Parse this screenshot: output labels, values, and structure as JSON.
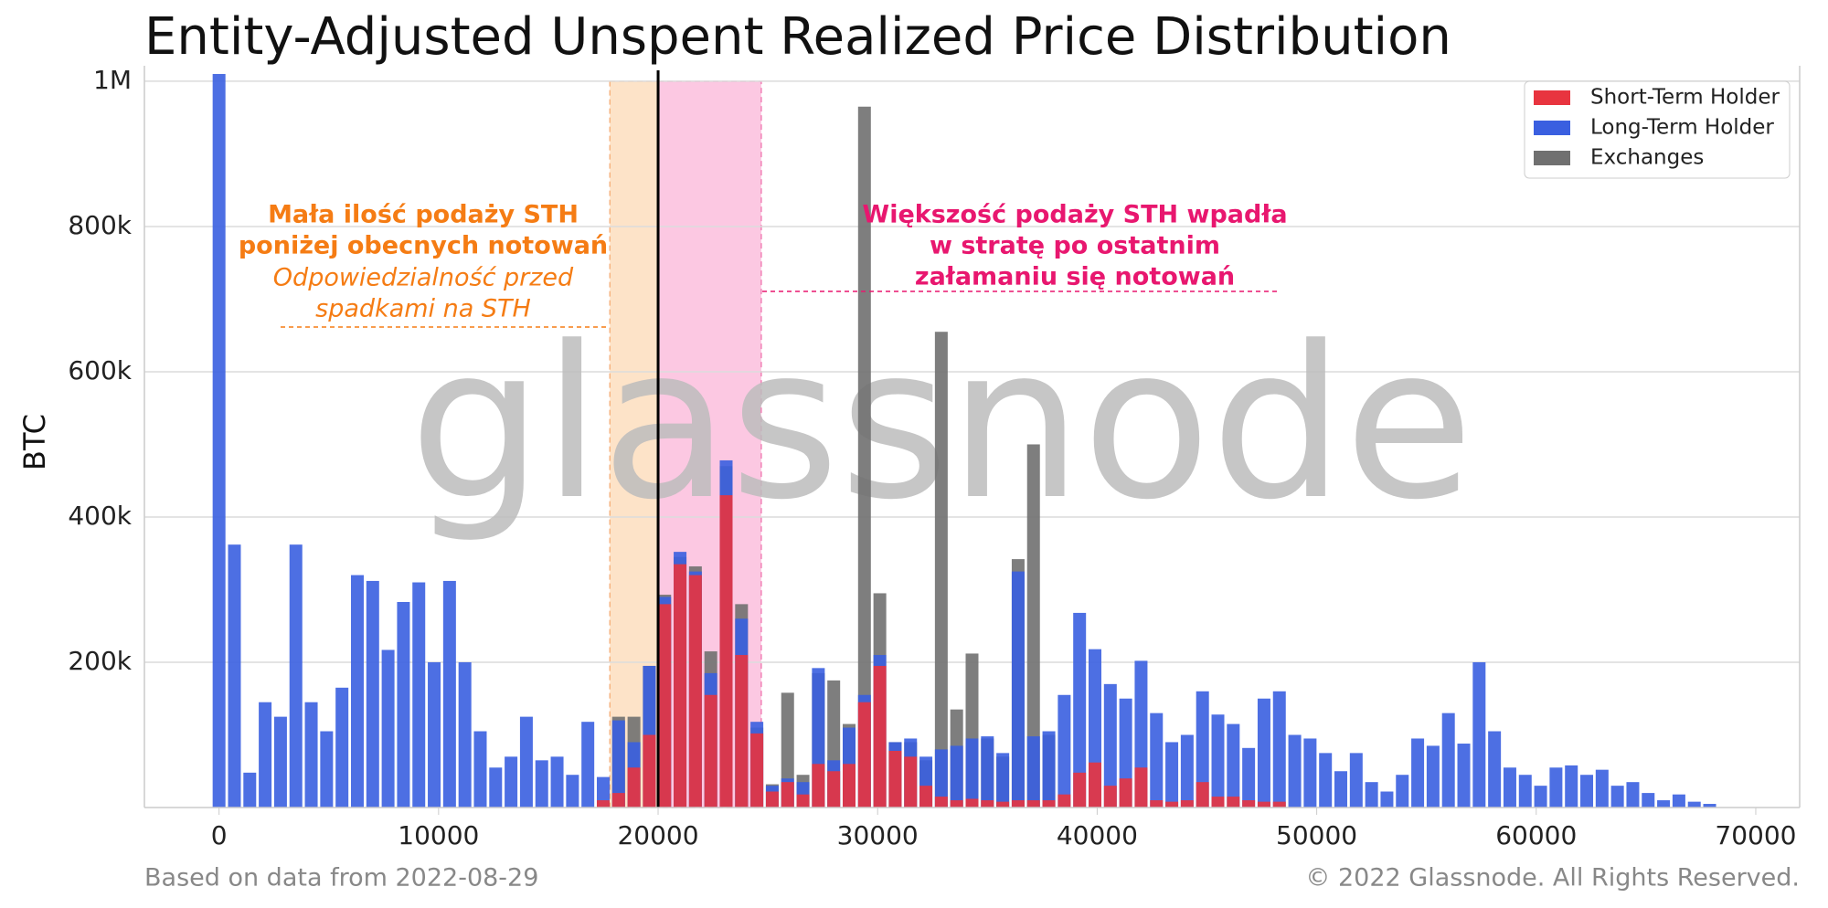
{
  "chart_data": {
    "type": "overlapping_bar",
    "title": "Entity-Adjusted Unspent Realized Price Distribution",
    "ylabel": "BTC",
    "watermark": "glassnode",
    "footer_left": "Based on data from 2022-08-29",
    "footer_right": "© 2022 Glassnode. All Rights Reserved.",
    "xlim": [
      -3400,
      72000
    ],
    "ylim": [
      0,
      1015000
    ],
    "xticks": [
      0,
      10000,
      20000,
      30000,
      40000,
      50000,
      60000,
      70000
    ],
    "yticks": [
      {
        "value": 200000,
        "label": "200k"
      },
      {
        "value": 400000,
        "label": "400k"
      },
      {
        "value": 600000,
        "label": "600k"
      },
      {
        "value": 800000,
        "label": "800k"
      },
      {
        "value": 1000000,
        "label": "1M"
      }
    ],
    "grid": true,
    "legend": "upper right",
    "x": [
      0,
      700,
      1400,
      2100,
      2800,
      3500,
      4200,
      4900,
      5600,
      6300,
      7000,
      7700,
      8400,
      9100,
      9800,
      10500,
      11200,
      11900,
      12600,
      13300,
      14000,
      14700,
      15400,
      16100,
      16800,
      17500,
      18200,
      18900,
      19600,
      20300,
      21000,
      21700,
      22400,
      23100,
      23800,
      24500,
      25200,
      25900,
      26600,
      27300,
      28000,
      28700,
      29400,
      30100,
      30800,
      31500,
      32200,
      32900,
      33600,
      34300,
      35000,
      35700,
      36400,
      37100,
      37800,
      38500,
      39200,
      39900,
      40600,
      41300,
      42000,
      42700,
      43400,
      44100,
      44800,
      45500,
      46200,
      46900,
      47600,
      48300,
      49000,
      49700,
      50400,
      51100,
      51800,
      52500,
      53200,
      53900,
      54600,
      55300,
      56000,
      56700,
      57400,
      58100,
      58800,
      59500,
      60200,
      60900,
      61600,
      62300,
      63000,
      63700,
      64400,
      65100,
      65800,
      66500,
      67200,
      67900
    ],
    "series": [
      {
        "name": "Exchanges",
        "color": "#707070",
        "values": [
          0,
          0,
          0,
          0,
          0,
          0,
          0,
          0,
          0,
          0,
          0,
          0,
          0,
          0,
          0,
          0,
          0,
          0,
          0,
          0,
          0,
          0,
          0,
          0,
          0,
          0,
          125000,
          125000,
          195000,
          293000,
          345000,
          332000,
          215000,
          470000,
          280000,
          110000,
          32000,
          158000,
          45000,
          185000,
          175000,
          115000,
          965000,
          295000,
          90000,
          90000,
          65000,
          655000,
          135000,
          212000,
          95000,
          70000,
          342000,
          500000,
          100000,
          0,
          0,
          0,
          0,
          0,
          0,
          0,
          0,
          0,
          0,
          0,
          0,
          0,
          0,
          0,
          0,
          0,
          0,
          0,
          0,
          0,
          0,
          0,
          0,
          0,
          0,
          0,
          0,
          0,
          0,
          0,
          0,
          0,
          0,
          0,
          0,
          0,
          0,
          0,
          0,
          0,
          0,
          0
        ]
      },
      {
        "name": "Long-Term Holder",
        "color": "#3a5fe0",
        "values": [
          1010000,
          362000,
          48000,
          145000,
          125000,
          362000,
          145000,
          105000,
          165000,
          320000,
          312000,
          217000,
          283000,
          310000,
          200000,
          312000,
          200000,
          105000,
          55000,
          70000,
          125000,
          65000,
          70000,
          45000,
          118000,
          42000,
          120000,
          90000,
          195000,
          290000,
          352000,
          325000,
          185000,
          478000,
          260000,
          118000,
          30000,
          40000,
          35000,
          192000,
          65000,
          110000,
          155000,
          210000,
          90000,
          95000,
          70000,
          80000,
          85000,
          95000,
          98000,
          75000,
          325000,
          98000,
          105000,
          155000,
          268000,
          218000,
          170000,
          150000,
          202000,
          130000,
          90000,
          100000,
          160000,
          128000,
          115000,
          82000,
          150000,
          160000,
          100000,
          95000,
          75000,
          50000,
          75000,
          35000,
          22000,
          45000,
          95000,
          85000,
          130000,
          88000,
          200000,
          105000,
          55000,
          45000,
          30000,
          55000,
          58000,
          45000,
          52000,
          30000,
          35000,
          20000,
          10000,
          18000,
          8000,
          5000
        ]
      },
      {
        "name": "Short-Term Holder",
        "color": "#e8343f",
        "values": [
          0,
          0,
          0,
          0,
          0,
          0,
          0,
          0,
          0,
          0,
          0,
          0,
          0,
          0,
          0,
          0,
          0,
          0,
          0,
          0,
          0,
          0,
          0,
          0,
          0,
          10000,
          20000,
          55000,
          100000,
          280000,
          335000,
          320000,
          155000,
          430000,
          210000,
          102000,
          22000,
          35000,
          18000,
          60000,
          50000,
          60000,
          145000,
          195000,
          78000,
          70000,
          30000,
          15000,
          10000,
          12000,
          10000,
          8000,
          10000,
          10000,
          10000,
          18000,
          48000,
          62000,
          30000,
          40000,
          55000,
          10000,
          8000,
          10000,
          35000,
          15000,
          15000,
          10000,
          8000,
          8000,
          0,
          0,
          0,
          0,
          0,
          0,
          0,
          0,
          0,
          0,
          0,
          0,
          0,
          0,
          0,
          0,
          0,
          0,
          0,
          0,
          0,
          0,
          0,
          0,
          0,
          0,
          0,
          0
        ]
      }
    ],
    "current_price": 20000,
    "regions": [
      {
        "from": 17800,
        "to": 20000,
        "color": "#fde3c8"
      },
      {
        "from": 20000,
        "to": 24700,
        "color": "#fcc8e2"
      }
    ],
    "annotations": [
      {
        "lines": [
          "Mała ilość podaży STH",
          "poniżej obecnych notowań"
        ],
        "italic_lines": [
          "Odpowiedzialność przed",
          "spadkami na STH"
        ],
        "color": "#f57c14"
      },
      {
        "lines": [
          "Większość podaży STH wpadła",
          "w stratę po ostatnim",
          "załamaniu się notowań"
        ],
        "color": "#e8176f"
      }
    ]
  }
}
